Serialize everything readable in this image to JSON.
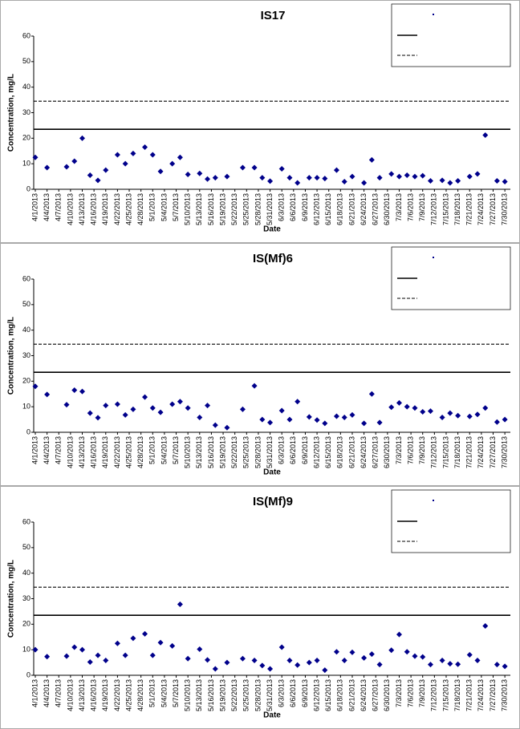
{
  "chart_data": [
    {
      "type": "scatter",
      "title": "IS17",
      "xlabel": "Date",
      "ylabel": "Concentration, mg/L",
      "color": "#00008b",
      "ylim": [
        0,
        60
      ],
      "yticks": [
        0,
        10,
        20,
        30,
        40,
        50,
        60
      ],
      "xlim": [
        "4/1/2013",
        "7/31/2013"
      ],
      "xticks": [
        "4/1/2013",
        "4/4/2013",
        "4/7/2013",
        "4/10/2013",
        "4/13/2013",
        "4/16/2013",
        "4/19/2013",
        "4/22/2013",
        "4/25/2013",
        "4/28/2013",
        "5/1/2013",
        "5/4/2013",
        "5/7/2013",
        "5/10/2013",
        "5/13/2013",
        "5/16/2013",
        "5/19/2013",
        "5/22/2013",
        "5/25/2013",
        "5/28/2013",
        "5/31/2013",
        "6/3/2013",
        "6/6/2013",
        "6/9/2013",
        "6/12/2013",
        "6/15/2013",
        "6/18/2013",
        "6/21/2013",
        "6/24/2013",
        "6/27/2013",
        "6/30/2013",
        "7/3/2013",
        "7/6/2013",
        "7/9/2013",
        "7/12/2013",
        "7/15/2013",
        "7/18/2013",
        "7/21/2013",
        "7/24/2013",
        "7/27/2013",
        "7/30/2013"
      ],
      "x": [
        "4/1/2013",
        "4/4/2013",
        "4/9/2013",
        "4/11/2013",
        "4/13/2013",
        "4/15/2013",
        "4/17/2013",
        "4/19/2013",
        "4/22/2013",
        "4/24/2013",
        "4/26/2013",
        "4/29/2013",
        "5/1/2013",
        "5/3/2013",
        "5/6/2013",
        "5/8/2013",
        "5/10/2013",
        "5/13/2013",
        "5/15/2013",
        "5/17/2013",
        "5/20/2013",
        "5/24/2013",
        "5/27/2013",
        "5/29/2013",
        "5/31/2013",
        "6/3/2013",
        "6/5/2013",
        "6/7/2013",
        "6/10/2013",
        "6/12/2013",
        "6/14/2013",
        "6/17/2013",
        "6/19/2013",
        "6/21/2013",
        "6/24/2013",
        "6/26/2013",
        "6/28/2013",
        "7/1/2013",
        "7/3/2013",
        "7/5/2013",
        "7/7/2013",
        "7/9/2013",
        "7/11/2013",
        "7/14/2013",
        "7/16/2013",
        "7/18/2013",
        "7/21/2013",
        "7/23/2013",
        "7/25/2013",
        "7/28/2013",
        "7/30/2013"
      ],
      "values": [
        12.5,
        8.5,
        8.8,
        11,
        20,
        5.5,
        3.5,
        7.5,
        13.5,
        10,
        14,
        16.5,
        13.5,
        7,
        10,
        12.5,
        5.8,
        6.2,
        4,
        4.5,
        5,
        8.5,
        8.5,
        4.5,
        3.2,
        8,
        4.5,
        2.5,
        4.5,
        4.5,
        4.2,
        7.5,
        3,
        5,
        2.5,
        11.5,
        4.5,
        6,
        5,
        5.5,
        5,
        5.3,
        3.3,
        3.5,
        2.5,
        3.3,
        5,
        6,
        21.2,
        3.3,
        3
      ],
      "hlines": [
        {
          "value": 23.5,
          "style": "solid"
        },
        {
          "value": 34.5,
          "style": "dashed"
        }
      ]
    },
    {
      "type": "scatter",
      "title": "IS(Mf)6",
      "xlabel": "Date",
      "ylabel": "Concentration, mg/L",
      "color": "#00008b",
      "ylim": [
        0,
        60
      ],
      "yticks": [
        0,
        10,
        20,
        30,
        40,
        50,
        60
      ],
      "xlim": [
        "4/1/2013",
        "7/31/2013"
      ],
      "xticks": [
        "4/1/2013",
        "4/4/2013",
        "4/7/2013",
        "4/10/2013",
        "4/13/2013",
        "4/16/2013",
        "4/19/2013",
        "4/22/2013",
        "4/25/2013",
        "4/28/2013",
        "5/1/2013",
        "5/4/2013",
        "5/7/2013",
        "5/10/2013",
        "5/13/2013",
        "5/16/2013",
        "5/19/2013",
        "5/22/2013",
        "5/25/2013",
        "5/28/2013",
        "5/31/2013",
        "6/3/2013",
        "6/6/2013",
        "6/9/2013",
        "6/12/2013",
        "6/15/2013",
        "6/18/2013",
        "6/21/2013",
        "6/24/2013",
        "6/27/2013",
        "6/30/2013",
        "7/3/2013",
        "7/6/2013",
        "7/9/2013",
        "7/12/2013",
        "7/15/2013",
        "7/18/2013",
        "7/21/2013",
        "7/24/2013",
        "7/27/2013",
        "7/30/2013"
      ],
      "x": [
        "4/1/2013",
        "4/4/2013",
        "4/9/2013",
        "4/11/2013",
        "4/13/2013",
        "4/15/2013",
        "4/17/2013",
        "4/19/2013",
        "4/22/2013",
        "4/24/2013",
        "4/26/2013",
        "4/29/2013",
        "5/1/2013",
        "5/3/2013",
        "5/6/2013",
        "5/8/2013",
        "5/10/2013",
        "5/13/2013",
        "5/15/2013",
        "5/17/2013",
        "5/20/2013",
        "5/24/2013",
        "5/27/2013",
        "5/29/2013",
        "5/31/2013",
        "6/3/2013",
        "6/5/2013",
        "6/7/2013",
        "6/10/2013",
        "6/12/2013",
        "6/14/2013",
        "6/17/2013",
        "6/19/2013",
        "6/21/2013",
        "6/24/2013",
        "6/26/2013",
        "6/28/2013",
        "7/1/2013",
        "7/3/2013",
        "7/5/2013",
        "7/7/2013",
        "7/9/2013",
        "7/11/2013",
        "7/14/2013",
        "7/16/2013",
        "7/18/2013",
        "7/21/2013",
        "7/23/2013",
        "7/25/2013",
        "7/28/2013",
        "7/30/2013"
      ],
      "values": [
        18,
        14.8,
        10.8,
        16.5,
        16,
        7.5,
        5.7,
        10.5,
        11,
        6.8,
        9,
        13.8,
        9.5,
        7.8,
        11,
        12,
        9.5,
        5.8,
        10.5,
        2.8,
        1.8,
        9,
        18.2,
        5,
        3.8,
        8.5,
        5,
        12,
        6,
        4.8,
        3.5,
        6.3,
        5.8,
        6.8,
        3.5,
        15,
        3.8,
        9.8,
        11.5,
        10,
        9.5,
        8,
        8.3,
        5.8,
        7.5,
        6.5,
        6.2,
        7,
        9.5,
        4,
        5
      ],
      "hlines": [
        {
          "value": 23.5,
          "style": "solid"
        },
        {
          "value": 34.5,
          "style": "dashed"
        }
      ]
    },
    {
      "type": "scatter",
      "title": "IS(Mf)9",
      "xlabel": "Date",
      "ylabel": "Concentration, mg/L",
      "color": "#00008b",
      "ylim": [
        0,
        60
      ],
      "yticks": [
        0,
        10,
        20,
        30,
        40,
        50,
        60
      ],
      "xlim": [
        "4/1/2013",
        "7/31/2013"
      ],
      "xticks": [
        "4/1/2013",
        "4/4/2013",
        "4/7/2013",
        "4/10/2013",
        "4/13/2013",
        "4/16/2013",
        "4/19/2013",
        "4/22/2013",
        "4/25/2013",
        "4/28/2013",
        "5/1/2013",
        "5/4/2013",
        "5/7/2013",
        "5/10/2013",
        "5/13/2013",
        "5/16/2013",
        "5/19/2013",
        "5/22/2013",
        "5/25/2013",
        "5/28/2013",
        "5/31/2013",
        "6/3/2013",
        "6/6/2013",
        "6/9/2013",
        "6/12/2013",
        "6/15/2013",
        "6/18/2013",
        "6/21/2013",
        "6/24/2013",
        "6/27/2013",
        "6/30/2013",
        "7/3/2013",
        "7/6/2013",
        "7/9/2013",
        "7/12/2013",
        "7/15/2013",
        "7/18/2013",
        "7/21/2013",
        "7/24/2013",
        "7/27/2013",
        "7/30/2013"
      ],
      "x": [
        "4/1/2013",
        "4/4/2013",
        "4/9/2013",
        "4/11/2013",
        "4/13/2013",
        "4/15/2013",
        "4/17/2013",
        "4/19/2013",
        "4/22/2013",
        "4/24/2013",
        "4/26/2013",
        "4/29/2013",
        "5/1/2013",
        "5/3/2013",
        "5/6/2013",
        "5/8/2013",
        "5/10/2013",
        "5/13/2013",
        "5/15/2013",
        "5/17/2013",
        "5/20/2013",
        "5/24/2013",
        "5/27/2013",
        "5/29/2013",
        "5/31/2013",
        "6/3/2013",
        "6/5/2013",
        "6/7/2013",
        "6/10/2013",
        "6/12/2013",
        "6/14/2013",
        "6/17/2013",
        "6/19/2013",
        "6/21/2013",
        "6/24/2013",
        "6/26/2013",
        "6/28/2013",
        "7/1/2013",
        "7/3/2013",
        "7/5/2013",
        "7/7/2013",
        "7/9/2013",
        "7/11/2013",
        "7/14/2013",
        "7/16/2013",
        "7/18/2013",
        "7/21/2013",
        "7/23/2013",
        "7/25/2013",
        "7/28/2013",
        "7/30/2013"
      ],
      "values": [
        10,
        7.3,
        7.5,
        11,
        10,
        5.2,
        7.8,
        5.8,
        12.5,
        7.8,
        14.5,
        16.2,
        7.8,
        12.8,
        11.5,
        27.8,
        6.5,
        10.2,
        6,
        2.5,
        5,
        6.5,
        5.8,
        3.8,
        2.5,
        11,
        5.8,
        4,
        5,
        5.8,
        2,
        9.2,
        5.8,
        9,
        6.8,
        8.3,
        4.2,
        9.8,
        16,
        9.2,
        7.5,
        7.2,
        4.2,
        5.8,
        4.5,
        4.3,
        8,
        5.8,
        19.3,
        4.2,
        3.5
      ],
      "hlines": [
        {
          "value": 23.5,
          "style": "solid"
        },
        {
          "value": 34.5,
          "style": "dashed"
        }
      ]
    }
  ]
}
